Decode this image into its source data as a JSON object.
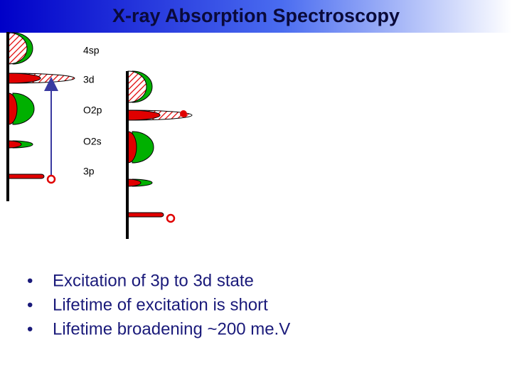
{
  "header": {
    "title": "X-ray Absorption Spectroscopy"
  },
  "levels": [
    "4sp",
    "3d",
    "O2p",
    "O2s",
    "3p"
  ],
  "bullets": [
    "Excitation of 3p to 3d state",
    "Lifetime of excitation is short",
    "Lifetime broadening ~200 me.V"
  ]
}
